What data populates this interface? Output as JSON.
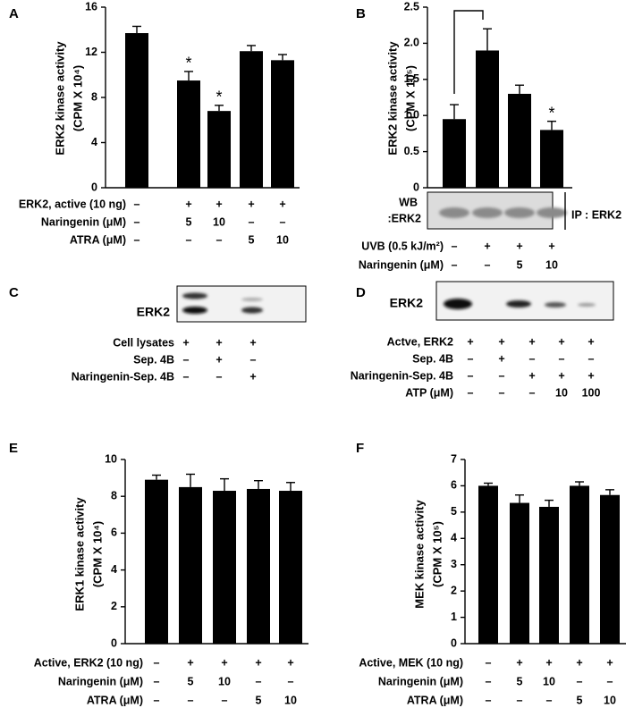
{
  "chart_data": [
    {
      "type": "bar",
      "panel": "A",
      "ylabel": [
        "ERK2 kinase activity",
        "(CPM X 10⁴)"
      ],
      "ylim": [
        0,
        16
      ],
      "yticks": [
        0,
        4,
        8,
        12,
        16
      ],
      "values": [
        13.7,
        9.5,
        6.8,
        12.1,
        11.3
      ],
      "errors": [
        0.6,
        0.8,
        0.5,
        0.5,
        0.5
      ],
      "markers": [
        null,
        "*",
        "*",
        null,
        null
      ],
      "color": "#000000",
      "conditions": [
        {
          "label": "ERK2, active (10 ng)",
          "marks": [
            "–",
            "+",
            "+",
            "+",
            "+"
          ]
        },
        {
          "label": "Naringenin (μM)",
          "marks": [
            "–",
            5,
            10,
            "–",
            "–"
          ]
        },
        {
          "label": "ATRA (μM)",
          "marks": [
            "–",
            "–",
            "–",
            5,
            10
          ]
        }
      ]
    },
    {
      "type": "bar",
      "panel": "B",
      "ylabel": [
        "ERK2 kinase activity",
        "(CPM X 10⁵)"
      ],
      "ylim": [
        0,
        2.5
      ],
      "yticks": [
        0,
        0.5,
        {
          "value": 1,
          "label": "1.0"
        },
        1.5,
        {
          "value": 2,
          "label": "2.0"
        },
        2.5
      ],
      "values": [
        0.95,
        1.9,
        1.3,
        0.8
      ],
      "errors": [
        0.2,
        0.3,
        0.12,
        0.12
      ],
      "markers": [
        null,
        null,
        null,
        "*"
      ],
      "color": "#000000",
      "blot_label": [
        "WB",
        ":ERK2"
      ],
      "ip_label": "IP : ERK2",
      "conditions": [
        {
          "label": "UVB (0.5 kJ/m²)",
          "marks": [
            "–",
            "+",
            "+",
            "+"
          ]
        },
        {
          "label": "Naringenin (μM)",
          "marks": [
            "–",
            "–",
            5,
            10
          ]
        }
      ]
    },
    {
      "type": "bar",
      "panel": "E",
      "ylabel": [
        "ERK1 kinase activity",
        "(CPM X 10⁴)"
      ],
      "ylim": [
        0,
        10
      ],
      "yticks": [
        0,
        2,
        4,
        6,
        8,
        10
      ],
      "values": [
        8.9,
        8.5,
        8.3,
        8.4,
        8.3
      ],
      "errors": [
        0.25,
        0.7,
        0.65,
        0.45,
        0.45
      ],
      "color": "#000000",
      "conditions": [
        {
          "label": "Active, ERK2 (10 ng)",
          "marks": [
            "–",
            "+",
            "+",
            "+",
            "+"
          ]
        },
        {
          "label": "Naringenin (μM)",
          "marks": [
            "–",
            5,
            10,
            "–",
            "–"
          ]
        },
        {
          "label": "ATRA (μM)",
          "marks": [
            "–",
            "–",
            "–",
            5,
            10
          ]
        }
      ]
    },
    {
      "type": "bar",
      "panel": "F",
      "ylabel": [
        "MEK kinase activity",
        "(CPM X 10⁵)"
      ],
      "ylim": [
        0,
        7
      ],
      "yticks": [
        0,
        1,
        2,
        3,
        4,
        5,
        6,
        7
      ],
      "values": [
        6.0,
        5.35,
        5.2,
        6.0,
        5.65
      ],
      "errors": [
        0.1,
        0.3,
        0.25,
        0.15,
        0.2
      ],
      "color": "#000000",
      "conditions": [
        {
          "label": "Active, MEK (10 ng)",
          "marks": [
            "–",
            "+",
            "+",
            "+",
            "+"
          ]
        },
        {
          "label": "Naringenin (μM)",
          "marks": [
            "–",
            5,
            10,
            "–",
            "–"
          ]
        },
        {
          "label": "ATRA (μM)",
          "marks": [
            "–",
            "–",
            "–",
            5,
            10
          ]
        }
      ]
    }
  ],
  "blots": [
    {
      "panel": "C",
      "label": "ERK2",
      "conditions": [
        {
          "label": "Cell lysates",
          "marks": [
            "+",
            "+",
            "+"
          ]
        },
        {
          "label": "Sep.  4B",
          "marks": [
            "–",
            "+",
            "–"
          ]
        },
        {
          "label": "Naringenin-Sep.  4B",
          "marks": [
            "–",
            "–",
            "+"
          ]
        }
      ]
    },
    {
      "panel": "D",
      "label": "ERK2",
      "conditions": [
        {
          "label": "Actve, ERK2",
          "marks": [
            "+",
            "+",
            "+",
            "+",
            "+"
          ]
        },
        {
          "label": "Sep.  4B",
          "marks": [
            "–",
            "+",
            "–",
            "–",
            "–"
          ]
        },
        {
          "label": "Naringenin-Sep.  4B",
          "marks": [
            "–",
            "–",
            "+",
            "+",
            "+"
          ]
        },
        {
          "label": "ATP (μM)",
          "marks": [
            "–",
            "–",
            "–",
            10,
            100
          ]
        }
      ]
    }
  ]
}
